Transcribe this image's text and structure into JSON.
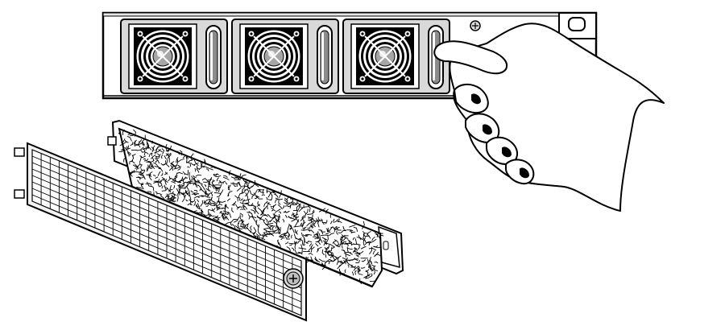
{
  "figure": {
    "icons": {
      "fan": "fan-icon",
      "screw": "screw-icon",
      "handle": "handle-icon",
      "hand": "hand-icon",
      "filter": "foam-filter-icon",
      "grille": "grille-cover-icon",
      "thumbscrew": "thumbscrew-icon"
    },
    "colors": {
      "line": "#000000",
      "fill": "#ffffff",
      "module_fill": "#d9d9d9",
      "grille_fill": "#f2f2f2",
      "fan_center": "#a6a6a6"
    },
    "fan_count": 3,
    "grille_columns": 30,
    "grille_rows": 8
  }
}
